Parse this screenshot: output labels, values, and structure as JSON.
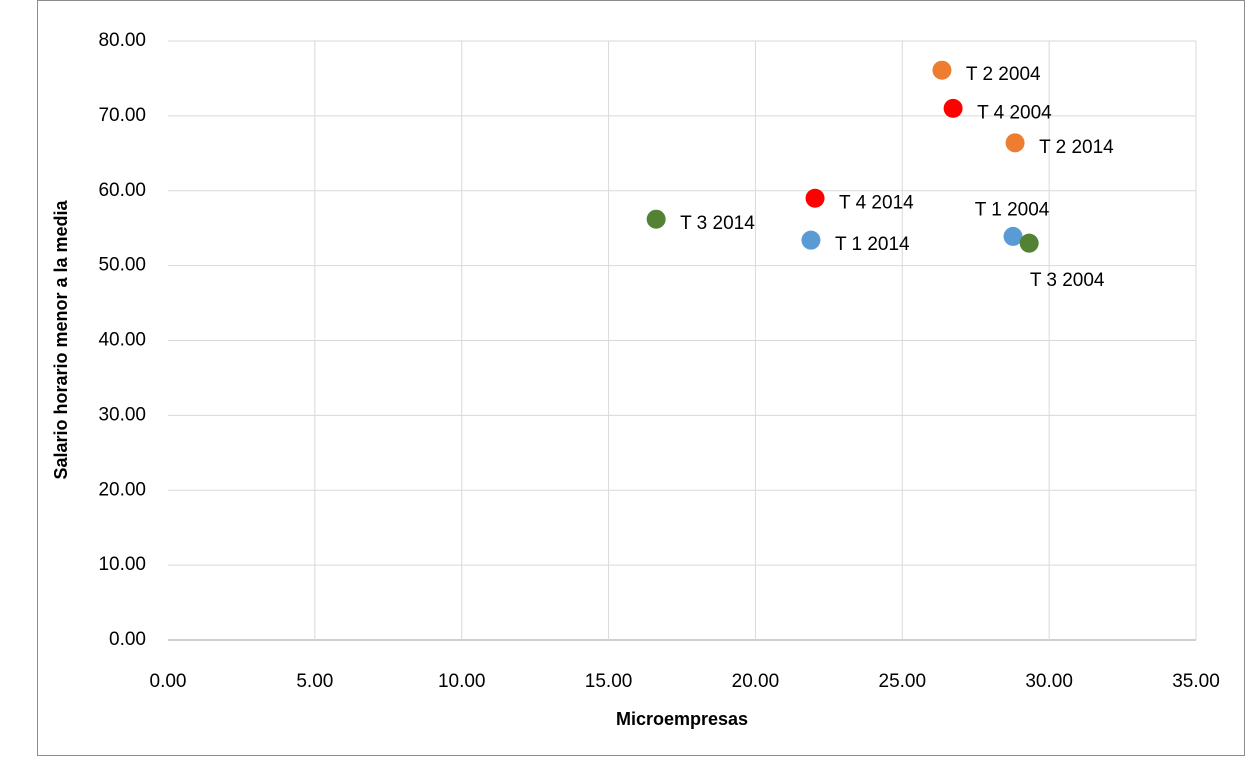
{
  "chart_data": {
    "type": "scatter",
    "x_label": "Microempresas",
    "y_label": "Salario horario menor a la media",
    "xlim": [
      0,
      35
    ],
    "ylim": [
      0,
      80
    ],
    "xticks": [
      {
        "value": 0,
        "label": "0.00"
      },
      {
        "value": 5,
        "label": "5.00"
      },
      {
        "value": 10,
        "label": "10.00"
      },
      {
        "value": 15,
        "label": "15.00"
      },
      {
        "value": 20,
        "label": "20.00"
      },
      {
        "value": 25,
        "label": "25.00"
      },
      {
        "value": 30,
        "label": "30.00"
      },
      {
        "value": 35,
        "label": "35.00"
      }
    ],
    "yticks": [
      {
        "value": 0,
        "label": "0.00"
      },
      {
        "value": 10,
        "label": "10.00"
      },
      {
        "value": 20,
        "label": "20.00"
      },
      {
        "value": 30,
        "label": "30.00"
      },
      {
        "value": 40,
        "label": "40.00"
      },
      {
        "value": 50,
        "label": "50.00"
      },
      {
        "value": 60,
        "label": "60.00"
      },
      {
        "value": 70,
        "label": "70.00"
      },
      {
        "value": 80,
        "label": "80.00"
      }
    ],
    "grid": true,
    "points": [
      {
        "label": "T 2 2004",
        "x": 26.35,
        "y": 76.1,
        "color": "#ed7d31",
        "label_position": "right"
      },
      {
        "label": "T 4 2004",
        "x": 26.73,
        "y": 71.0,
        "color": "#ff0000",
        "label_position": "right"
      },
      {
        "label": "T 2 2014",
        "x": 28.84,
        "y": 66.4,
        "color": "#ed7d31",
        "label_position": "right"
      },
      {
        "label": "T 4 2014",
        "x": 22.03,
        "y": 59.0,
        "color": "#ff0000",
        "label_position": "right"
      },
      {
        "label": "T 3 2014",
        "x": 16.62,
        "y": 56.2,
        "color": "#548235",
        "label_position": "right"
      },
      {
        "label": "T 1 2014",
        "x": 21.89,
        "y": 53.4,
        "color": "#5b9bd5",
        "label_position": "right"
      },
      {
        "label": "T 1 2004",
        "x": 28.77,
        "y": 53.9,
        "color": "#5b9bd5",
        "label_position": "above"
      },
      {
        "label": "T 3 2004",
        "x": 29.32,
        "y": 53.0,
        "color": "#548235",
        "label_position": "below"
      }
    ]
  }
}
